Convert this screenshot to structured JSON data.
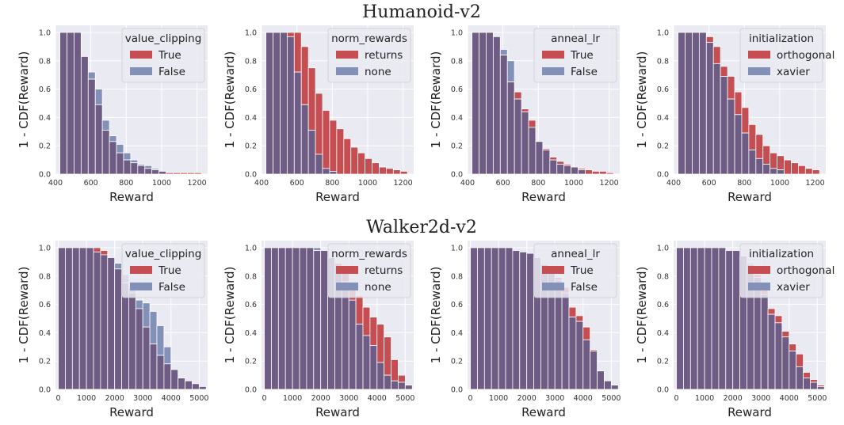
{
  "figure": {
    "row_titles": [
      "Humanoid-v2",
      "Walker2d-v2"
    ]
  },
  "colors": {
    "true_series": "#c44e52",
    "false_series": "#8390b8",
    "overlap": "#6e5c84",
    "plot_bg": "#eaeaf2",
    "grid": "#ffffff"
  },
  "chart_data": [
    {
      "type": "bar",
      "row": 0,
      "col": 0,
      "xlabel": "Reward",
      "ylabel": "1 - CDF(Reward)",
      "xlim": [
        400,
        1260
      ],
      "ylim": [
        0,
        1.05
      ],
      "xticks": [
        400,
        600,
        800,
        1000,
        1200
      ],
      "yticks": [
        0.0,
        0.2,
        0.4,
        0.6,
        0.8,
        1.0
      ],
      "legend": {
        "title": "value_clipping",
        "position": "top-right"
      },
      "bin_start": 425,
      "bin_width": 40,
      "series": [
        {
          "name": "True",
          "values": [
            1.0,
            1.0,
            1.0,
            0.83,
            0.67,
            0.49,
            0.31,
            0.23,
            0.15,
            0.1,
            0.08,
            0.06,
            0.04,
            0.03,
            0.02,
            0.01,
            0.01,
            0.01,
            0.01,
            0.01
          ]
        },
        {
          "name": "False",
          "values": [
            1.0,
            1.0,
            1.0,
            0.83,
            0.72,
            0.6,
            0.38,
            0.27,
            0.21,
            0.15,
            0.1,
            0.07,
            0.06,
            0.04,
            0.02,
            0,
            0,
            0,
            0,
            0
          ]
        }
      ]
    },
    {
      "type": "bar",
      "row": 0,
      "col": 1,
      "xlabel": "Reward",
      "ylabel": "1 - CDF(Reward)",
      "xlim": [
        400,
        1260
      ],
      "ylim": [
        0,
        1.05
      ],
      "xticks": [
        400,
        600,
        800,
        1000,
        1200
      ],
      "yticks": [
        0.0,
        0.2,
        0.4,
        0.6,
        0.8,
        1.0
      ],
      "legend": {
        "title": "norm_rewards",
        "position": "top-right"
      },
      "bin_start": 425,
      "bin_width": 40,
      "series": [
        {
          "name": "returns",
          "values": [
            1.0,
            1.0,
            1.0,
            1.0,
            1.0,
            0.9,
            0.75,
            0.57,
            0.45,
            0.38,
            0.32,
            0.25,
            0.19,
            0.15,
            0.11,
            0.08,
            0.05,
            0.04,
            0.03,
            0.02
          ]
        },
        {
          "name": "none",
          "values": [
            1.0,
            1.0,
            1.0,
            0.97,
            0.72,
            0.49,
            0.31,
            0.14,
            0.04,
            0.02,
            0,
            0,
            0,
            0,
            0,
            0,
            0,
            0,
            0,
            0
          ]
        }
      ]
    },
    {
      "type": "bar",
      "row": 0,
      "col": 2,
      "xlabel": "Reward",
      "ylabel": "1 - CDF(Reward)",
      "xlim": [
        400,
        1260
      ],
      "ylim": [
        0,
        1.05
      ],
      "xticks": [
        400,
        600,
        800,
        1000,
        1200
      ],
      "yticks": [
        0.0,
        0.2,
        0.4,
        0.6,
        0.8,
        1.0
      ],
      "legend": {
        "title": "anneal_lr",
        "position": "top-right"
      },
      "bin_start": 425,
      "bin_width": 40,
      "series": [
        {
          "name": "True",
          "values": [
            1.0,
            1.0,
            1.0,
            0.97,
            0.84,
            0.65,
            0.58,
            0.46,
            0.38,
            0.23,
            0.18,
            0.12,
            0.09,
            0.07,
            0.05,
            0.04,
            0.03,
            0.02,
            0.02,
            0.01
          ]
        },
        {
          "name": "False",
          "values": [
            1.0,
            1.0,
            1.0,
            0.97,
            0.88,
            0.8,
            0.53,
            0.44,
            0.33,
            0.23,
            0.17,
            0.1,
            0.07,
            0.06,
            0.05,
            0.03,
            0,
            0,
            0,
            0
          ]
        }
      ]
    },
    {
      "type": "bar",
      "row": 0,
      "col": 3,
      "xlabel": "Reward",
      "ylabel": "1 - CDF(Reward)",
      "xlim": [
        400,
        1260
      ],
      "ylim": [
        0,
        1.05
      ],
      "xticks": [
        400,
        600,
        800,
        1000,
        1200
      ],
      "yticks": [
        0.0,
        0.2,
        0.4,
        0.6,
        0.8,
        1.0
      ],
      "legend": {
        "title": "initialization",
        "position": "top-right"
      },
      "bin_start": 425,
      "bin_width": 40,
      "series": [
        {
          "name": "orthogonal",
          "values": [
            1.0,
            1.0,
            1.0,
            1.0,
            0.97,
            0.9,
            0.76,
            0.69,
            0.58,
            0.47,
            0.35,
            0.28,
            0.2,
            0.15,
            0.13,
            0.1,
            0.08,
            0.06,
            0.04,
            0.03
          ]
        },
        {
          "name": "xavier",
          "values": [
            1.0,
            1.0,
            1.0,
            1.0,
            0.93,
            0.78,
            0.69,
            0.53,
            0.42,
            0.29,
            0.17,
            0.11,
            0.07,
            0.04,
            0.03,
            0,
            0,
            0,
            0,
            0
          ]
        }
      ]
    },
    {
      "type": "bar",
      "row": 1,
      "col": 0,
      "xlabel": "Reward",
      "ylabel": "1 - CDF(Reward)",
      "xlim": [
        -100,
        5300
      ],
      "ylim": [
        0,
        1.05
      ],
      "xticks": [
        0,
        1000,
        2000,
        3000,
        4000,
        5000
      ],
      "yticks": [
        0.0,
        0.2,
        0.4,
        0.6,
        0.8,
        1.0
      ],
      "legend": {
        "title": "value_clipping",
        "position": "top-right"
      },
      "bin_start": 0,
      "bin_width": 250,
      "series": [
        {
          "name": "True",
          "values": [
            1.0,
            1.0,
            1.0,
            1.0,
            1.0,
            1.0,
            0.98,
            0.93,
            0.85,
            0.75,
            0.68,
            0.57,
            0.44,
            0.32,
            0.24,
            0.18,
            0.14,
            0.08,
            0.06,
            0.04,
            0.02
          ]
        },
        {
          "name": "False",
          "values": [
            1.0,
            1.0,
            1.0,
            1.0,
            1.0,
            0.97,
            0.95,
            0.93,
            0.89,
            0.81,
            0.72,
            0.63,
            0.61,
            0.55,
            0.45,
            0.3,
            0.14,
            0.08,
            0.06,
            0.04,
            0.02
          ]
        }
      ]
    },
    {
      "type": "bar",
      "row": 1,
      "col": 1,
      "xlabel": "Reward",
      "ylabel": "1 - CDF(Reward)",
      "xlim": [
        -100,
        5300
      ],
      "ylim": [
        0,
        1.05
      ],
      "xticks": [
        0,
        1000,
        2000,
        3000,
        4000,
        5000
      ],
      "yticks": [
        0.0,
        0.2,
        0.4,
        0.6,
        0.8,
        1.0
      ],
      "legend": {
        "title": "norm_rewards",
        "position": "top-right"
      },
      "bin_start": 0,
      "bin_width": 250,
      "series": [
        {
          "name": "returns",
          "values": [
            1.0,
            1.0,
            1.0,
            1.0,
            1.0,
            1.0,
            1.0,
            0.98,
            0.98,
            0.93,
            0.89,
            0.82,
            0.72,
            0.66,
            0.58,
            0.51,
            0.46,
            0.37,
            0.21,
            0.1,
            0.03
          ]
        },
        {
          "name": "none",
          "values": [
            1.0,
            1.0,
            1.0,
            1.0,
            1.0,
            1.0,
            1.0,
            1.0,
            0.98,
            0.93,
            0.87,
            0.76,
            0.63,
            0.46,
            0.38,
            0.31,
            0.19,
            0.1,
            0.06,
            0.05,
            0.03
          ]
        }
      ]
    },
    {
      "type": "bar",
      "row": 1,
      "col": 2,
      "xlabel": "Reward",
      "ylabel": "1 - CDF(Reward)",
      "xlim": [
        -100,
        5300
      ],
      "ylim": [
        0,
        1.05
      ],
      "xticks": [
        0,
        1000,
        2000,
        3000,
        4000,
        5000
      ],
      "yticks": [
        0.0,
        0.2,
        0.4,
        0.6,
        0.8,
        1.0
      ],
      "legend": {
        "title": "anneal_lr",
        "position": "top-right"
      },
      "bin_start": 0,
      "bin_width": 250,
      "series": [
        {
          "name": "True",
          "values": [
            1.0,
            1.0,
            1.0,
            1.0,
            1.0,
            1.0,
            0.98,
            0.97,
            0.96,
            0.93,
            0.88,
            0.83,
            0.79,
            0.72,
            0.58,
            0.52,
            0.44,
            0.28,
            0.13,
            0.06,
            0.03
          ]
        },
        {
          "name": "False",
          "values": [
            1.0,
            1.0,
            1.0,
            1.0,
            1.0,
            1.0,
            0.98,
            0.97,
            0.96,
            0.93,
            0.88,
            0.82,
            0.77,
            0.68,
            0.51,
            0.48,
            0.35,
            0.27,
            0.13,
            0.06,
            0.03
          ]
        }
      ]
    },
    {
      "type": "bar",
      "row": 1,
      "col": 3,
      "xlabel": "Reward",
      "ylabel": "1 - CDF(Reward)",
      "xlim": [
        -100,
        5300
      ],
      "ylim": [
        0,
        1.05
      ],
      "xticks": [
        0,
        1000,
        2000,
        3000,
        4000,
        5000
      ],
      "yticks": [
        0.0,
        0.2,
        0.4,
        0.6,
        0.8,
        1.0
      ],
      "legend": {
        "title": "initialization",
        "position": "top-right"
      },
      "bin_start": 0,
      "bin_width": 250,
      "series": [
        {
          "name": "orthogonal",
          "values": [
            1.0,
            1.0,
            1.0,
            1.0,
            1.0,
            1.0,
            1.0,
            0.98,
            0.98,
            0.94,
            0.89,
            0.81,
            0.72,
            0.57,
            0.52,
            0.41,
            0.32,
            0.25,
            0.12,
            0.07,
            0.03
          ]
        },
        {
          "name": "xavier",
          "values": [
            1.0,
            1.0,
            1.0,
            1.0,
            1.0,
            1.0,
            1.0,
            0.98,
            0.98,
            0.94,
            0.88,
            0.79,
            0.67,
            0.53,
            0.47,
            0.37,
            0.27,
            0.16,
            0.08,
            0.05,
            0.02
          ]
        }
      ]
    }
  ]
}
